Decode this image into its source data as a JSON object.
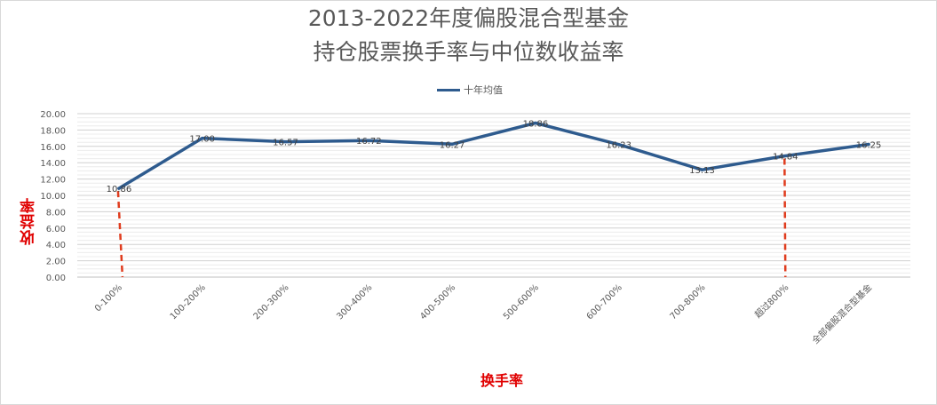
{
  "chart_data": {
    "type": "line",
    "title": "2013-2022年度偏股混合型基金",
    "subtitle": "持仓股票换手率与中位数收益率",
    "xlabel": "换手率",
    "ylabel": "收益率",
    "categories": [
      "0-100%",
      "100-200%",
      "200-300%",
      "300-400%",
      "400-500%",
      "500-600%",
      "600-700%",
      "700-800%",
      "超过800%",
      "全部偏股混合型基金"
    ],
    "series": [
      {
        "name": "十年均值",
        "values": [
          10.86,
          17.0,
          16.57,
          16.72,
          16.27,
          18.86,
          16.23,
          13.13,
          14.84,
          16.25
        ]
      }
    ],
    "data_labels": [
      "10.86",
      "17.00",
      "16.57",
      "16.72",
      "16.27",
      "18.86",
      "16.23",
      "13.13",
      "14.84",
      "16.25"
    ],
    "ylim": [
      0,
      20
    ],
    "yticks": [
      "0.00",
      "2.00",
      "4.00",
      "6.00",
      "8.00",
      "10.00",
      "12.00",
      "14.00",
      "16.00",
      "18.00",
      "20.00"
    ],
    "grid": true,
    "legend_position": "top",
    "series_color": "#2e5b8e",
    "highlight_drop_lines": [
      0,
      8
    ],
    "highlight_color": "#e03c1e"
  }
}
